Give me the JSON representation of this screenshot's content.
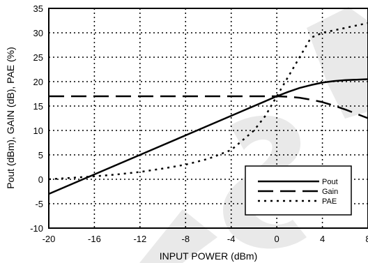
{
  "chart_data": {
    "type": "line",
    "xlabel": "INPUT POWER (dBm)",
    "ylabel": "Pout (dBm), GAIN (dB), PAE (%)",
    "xlim": [
      -20,
      8
    ],
    "ylim": [
      -10,
      35
    ],
    "x_ticks": [
      "-20",
      "-16",
      "-12",
      "-8",
      "-4",
      "0",
      "4",
      "8"
    ],
    "y_ticks": [
      "35",
      "30",
      "25",
      "20",
      "15",
      "10",
      "5",
      "0",
      "-5",
      "-10"
    ],
    "grid": "dotted",
    "legend_position": "bottom-right",
    "watermark_color": "#000000",
    "series": [
      {
        "name": "Pout",
        "style": "solid",
        "points": [
          [
            -20,
            -3
          ],
          [
            -18,
            -1
          ],
          [
            -16,
            1
          ],
          [
            -14,
            3
          ],
          [
            -12,
            5
          ],
          [
            -10,
            7
          ],
          [
            -8,
            9
          ],
          [
            -6,
            11
          ],
          [
            -4,
            13
          ],
          [
            -2,
            15
          ],
          [
            0,
            17
          ],
          [
            1,
            17.9
          ],
          [
            2,
            18.7
          ],
          [
            3,
            19.3
          ],
          [
            4,
            19.8
          ],
          [
            5,
            20.1
          ],
          [
            6,
            20.3
          ],
          [
            7,
            20.4
          ],
          [
            8,
            20.5
          ]
        ]
      },
      {
        "name": "Gain",
        "style": "long-dash",
        "points": [
          [
            -20,
            17
          ],
          [
            -16,
            17
          ],
          [
            -12,
            17
          ],
          [
            -8,
            17
          ],
          [
            -4,
            17
          ],
          [
            0,
            17
          ],
          [
            1,
            16.9
          ],
          [
            2,
            16.7
          ],
          [
            3,
            16.3
          ],
          [
            4,
            15.8
          ],
          [
            5,
            15.1
          ],
          [
            6,
            14.3
          ],
          [
            7,
            13.4
          ],
          [
            8,
            12.5
          ]
        ]
      },
      {
        "name": "PAE",
        "style": "dotted",
        "points": [
          [
            -20,
            0
          ],
          [
            -18,
            0.3
          ],
          [
            -16,
            0.6
          ],
          [
            -14,
            1
          ],
          [
            -12,
            1.5
          ],
          [
            -10,
            2.2
          ],
          [
            -8,
            3
          ],
          [
            -6,
            4.2
          ],
          [
            -4,
            6
          ],
          [
            -3,
            8
          ],
          [
            -2,
            10
          ],
          [
            -1,
            13
          ],
          [
            0,
            17
          ],
          [
            1,
            21
          ],
          [
            2,
            25
          ],
          [
            3,
            29
          ],
          [
            4,
            30
          ],
          [
            5,
            30.5
          ],
          [
            6,
            31
          ],
          [
            7,
            31.5
          ],
          [
            8,
            32
          ]
        ]
      }
    ]
  }
}
